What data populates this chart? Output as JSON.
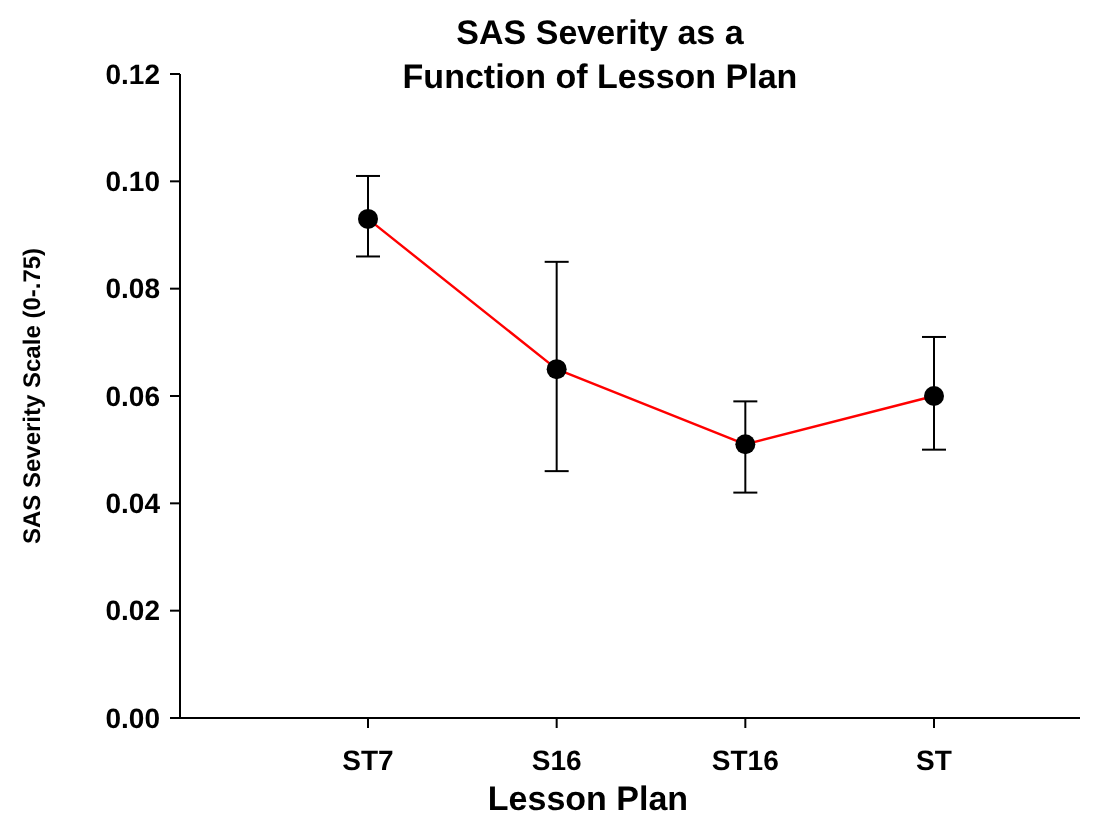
{
  "chart_data": {
    "type": "line",
    "title": "SAS Severity as a\nFunction of Lesson Plan",
    "xlabel": "Lesson Plan",
    "ylabel": "SAS Severity Scale (0-.75)",
    "categories": [
      "ST7",
      "S16",
      "ST16",
      "ST"
    ],
    "series": [
      {
        "color": "#ff0000",
        "values": [
          0.093,
          0.065,
          0.051,
          0.06
        ],
        "errors": [
          [
            0.086,
            0.101
          ],
          [
            0.046,
            0.085
          ],
          [
            0.042,
            0.059
          ],
          [
            0.05,
            0.071
          ]
        ]
      }
    ],
    "ylim": [
      0,
      0.12
    ],
    "yticks": [
      {
        "value": 0,
        "label": "0.00"
      },
      {
        "value": 0.02,
        "label": "0.02"
      },
      {
        "value": 0.04,
        "label": "0.04"
      },
      {
        "value": 0.06,
        "label": "0.06"
      },
      {
        "value": 0.08,
        "label": "0.08"
      },
      {
        "value": 0.1,
        "label": "0.10"
      },
      {
        "value": 0.12,
        "label": "0.12"
      }
    ],
    "marker": "circle",
    "line_style": "solid"
  }
}
